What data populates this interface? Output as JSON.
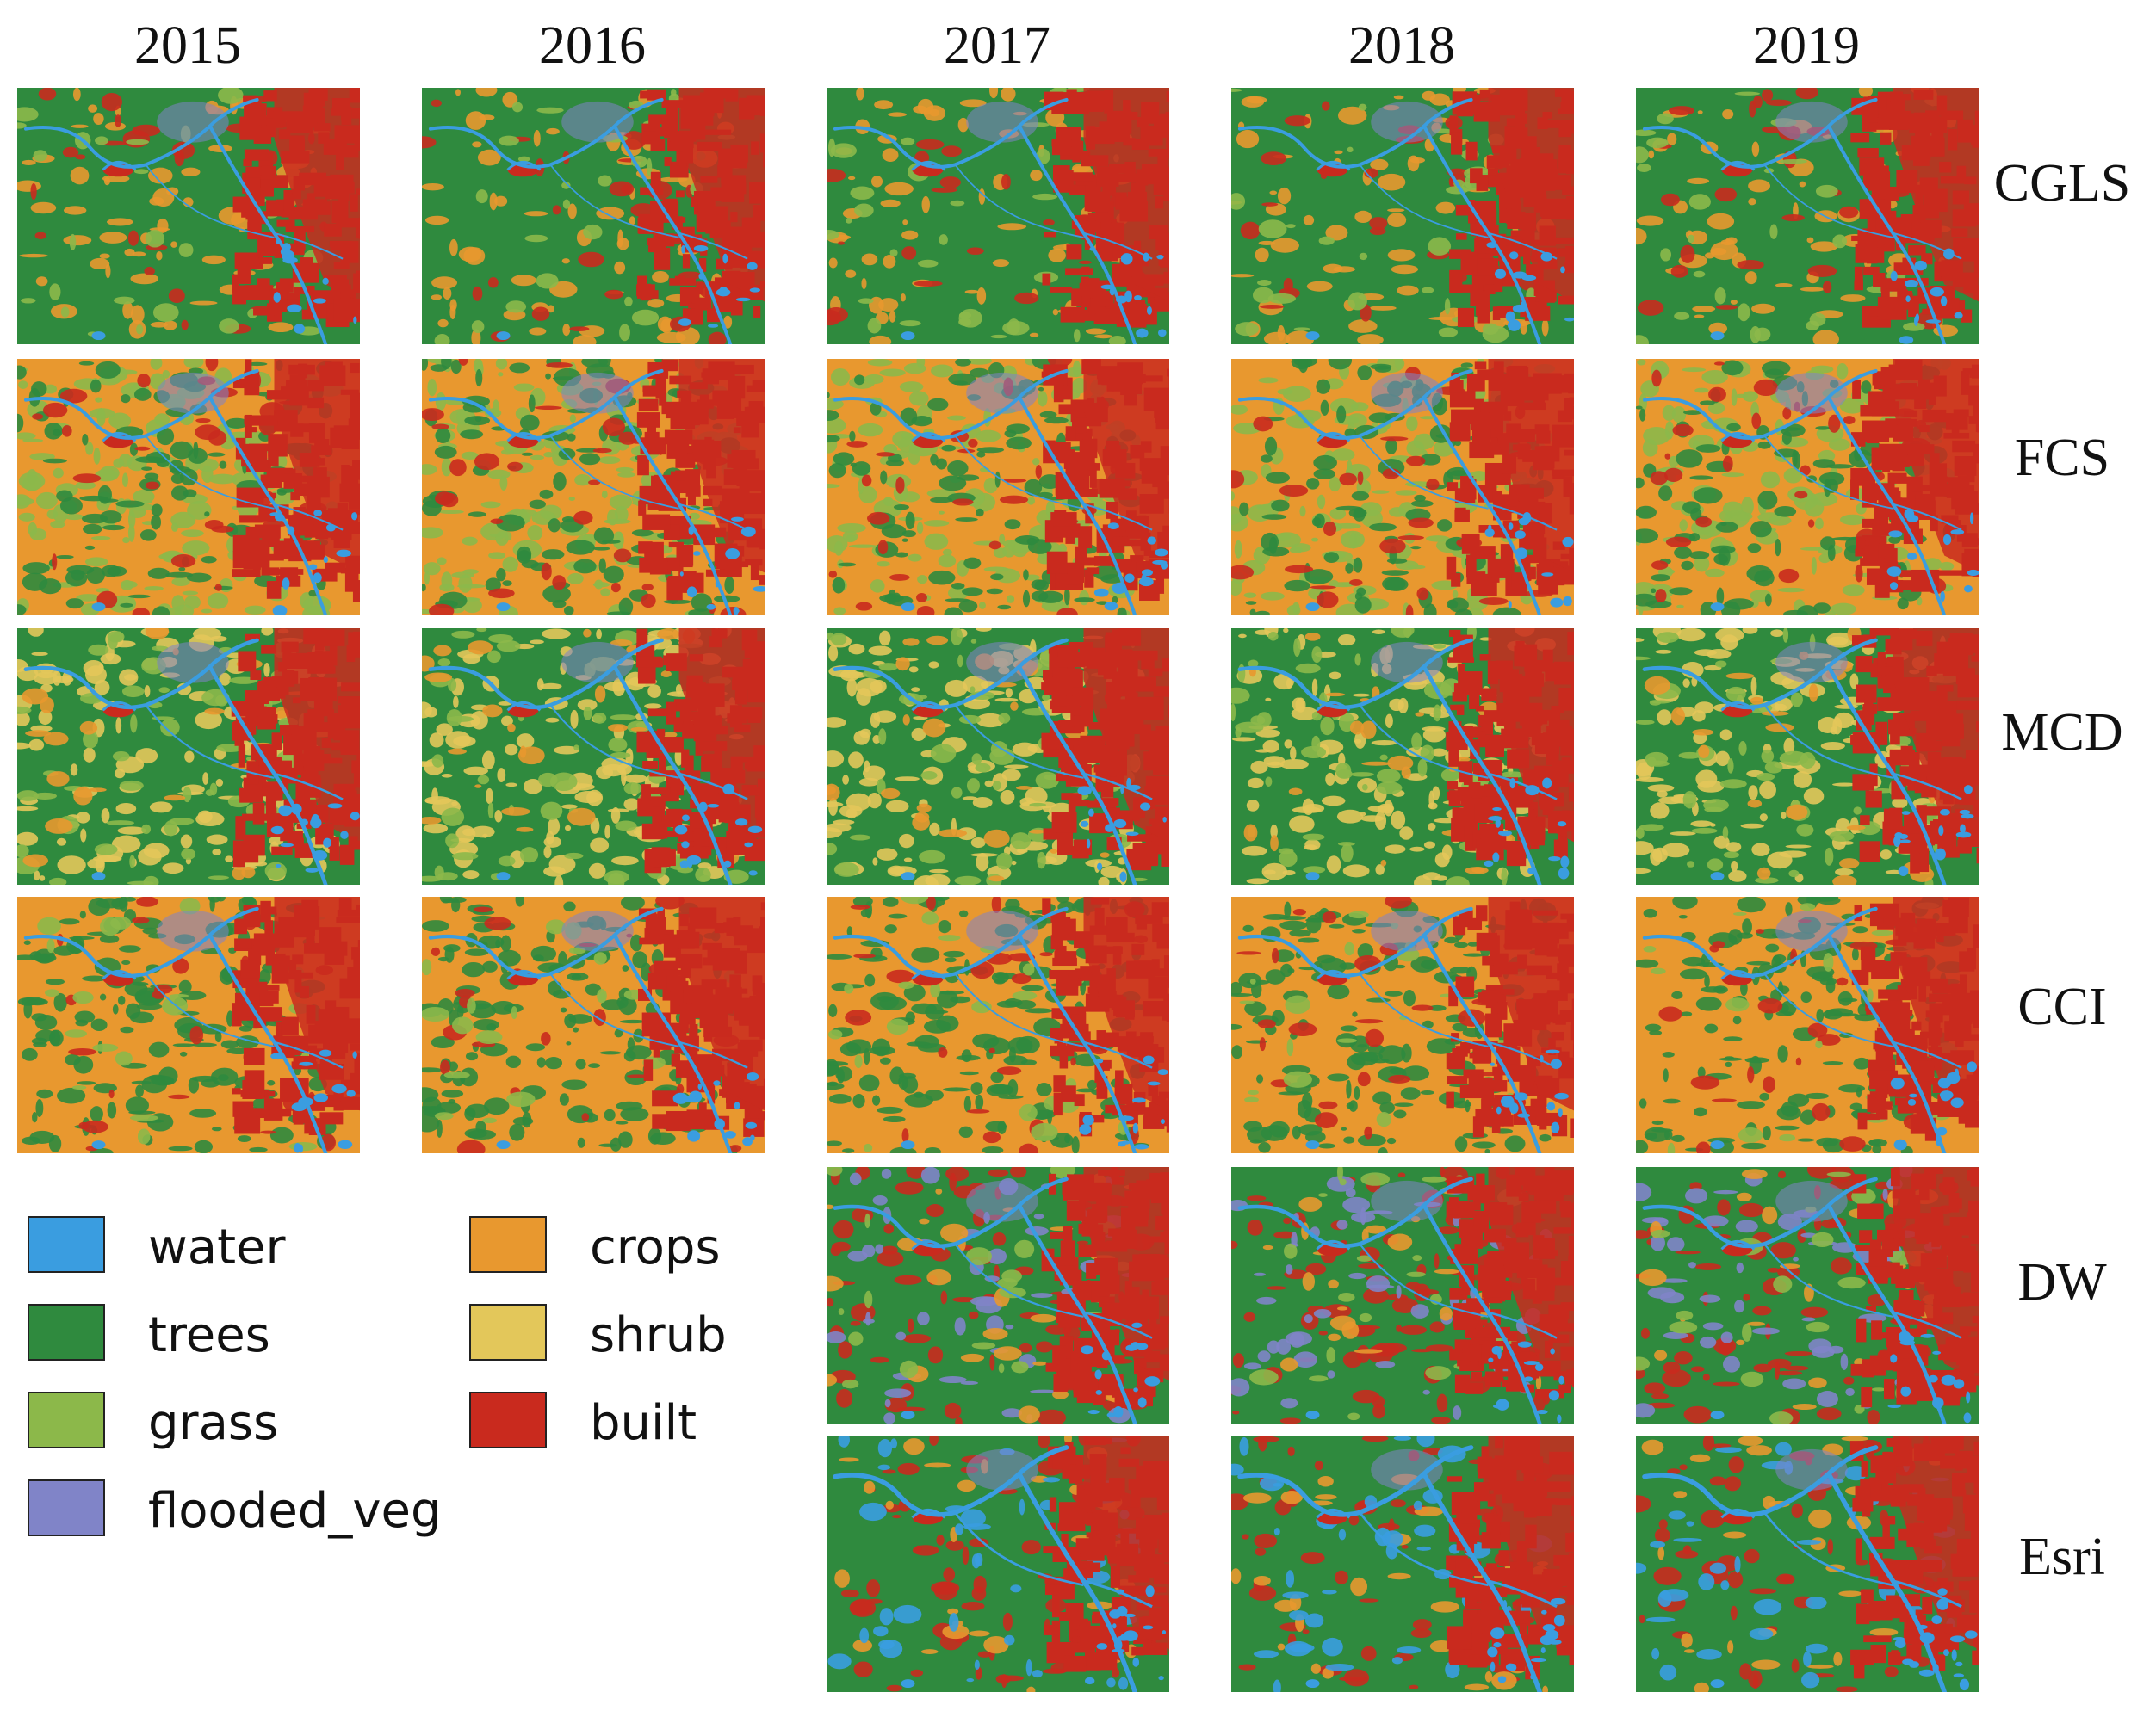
{
  "years": [
    "2015",
    "2016",
    "2017",
    "2018",
    "2019"
  ],
  "products": [
    "CGLS",
    "FCS",
    "MCD",
    "CCI",
    "DW",
    "Esri"
  ],
  "legend": [
    {
      "label": "water",
      "color": "#3a9de0"
    },
    {
      "label": "trees",
      "color": "#2f8a3e"
    },
    {
      "label": "grass",
      "color": "#8cb84a"
    },
    {
      "label": "flooded_veg",
      "color": "#8084c8"
    },
    {
      "label": "crops",
      "color": "#e8982f"
    },
    {
      "label": "shrub",
      "color": "#e3c75a"
    },
    {
      "label": "built",
      "color": "#c92a1e"
    }
  ],
  "maps": [
    {
      "product": "CGLS",
      "year": "2015"
    },
    {
      "product": "CGLS",
      "year": "2016"
    },
    {
      "product": "CGLS",
      "year": "2017"
    },
    {
      "product": "CGLS",
      "year": "2018"
    },
    {
      "product": "CGLS",
      "year": "2019"
    },
    {
      "product": "FCS",
      "year": "2015"
    },
    {
      "product": "FCS",
      "year": "2016"
    },
    {
      "product": "FCS",
      "year": "2017"
    },
    {
      "product": "FCS",
      "year": "2018"
    },
    {
      "product": "FCS",
      "year": "2019"
    },
    {
      "product": "MCD",
      "year": "2015"
    },
    {
      "product": "MCD",
      "year": "2016"
    },
    {
      "product": "MCD",
      "year": "2017"
    },
    {
      "product": "MCD",
      "year": "2018"
    },
    {
      "product": "MCD",
      "year": "2019"
    },
    {
      "product": "CCI",
      "year": "2015"
    },
    {
      "product": "CCI",
      "year": "2016"
    },
    {
      "product": "CCI",
      "year": "2017"
    },
    {
      "product": "CCI",
      "year": "2018"
    },
    {
      "product": "CCI",
      "year": "2019"
    },
    {
      "product": "DW",
      "year": "2017"
    },
    {
      "product": "DW",
      "year": "2018"
    },
    {
      "product": "DW",
      "year": "2019"
    },
    {
      "product": "Esri",
      "year": "2017"
    },
    {
      "product": "Esri",
      "year": "2018"
    },
    {
      "product": "Esri",
      "year": "2019"
    }
  ]
}
